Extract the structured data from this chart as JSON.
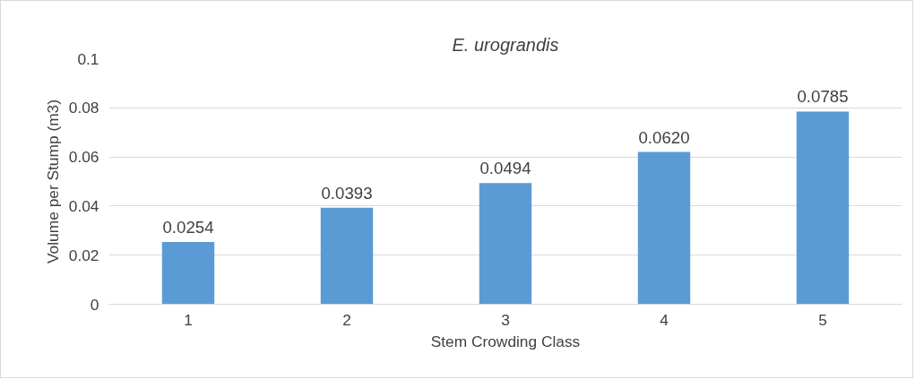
{
  "chart_data": {
    "type": "bar",
    "title": "E. urograndis",
    "xlabel": "Stem Crowding Class",
    "ylabel": "Volume per Stump (m3)",
    "categories": [
      "1",
      "2",
      "3",
      "4",
      "5"
    ],
    "values": [
      0.0254,
      0.0393,
      0.0494,
      0.062,
      0.0785
    ],
    "value_labels": [
      "0.0254",
      "0.0393",
      "0.0494",
      "0.0620",
      "0.0785"
    ],
    "color": "#5b9bd5",
    "ylim": [
      0,
      0.1
    ],
    "yticks": [
      0,
      0.02,
      0.04,
      0.06,
      0.08,
      0.1
    ],
    "grid": "y"
  }
}
